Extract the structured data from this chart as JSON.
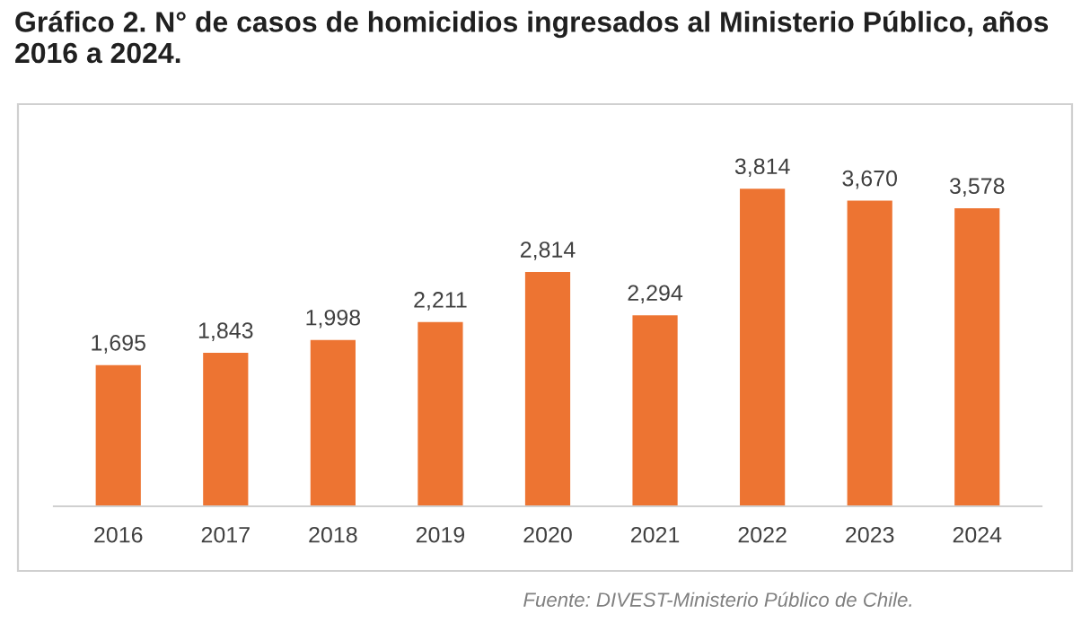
{
  "chart_data": {
    "type": "bar",
    "title": "Gráfico 2. N° de casos de homicidios ingresados al Ministerio Público, años 2016 a 2024.",
    "categories": [
      "2016",
      "2017",
      "2018",
      "2019",
      "2020",
      "2021",
      "2022",
      "2023",
      "2024"
    ],
    "values": [
      1695,
      1843,
      1998,
      2211,
      2814,
      2294,
      3814,
      3670,
      3578
    ],
    "value_labels": [
      "1,695",
      "1,843",
      "1,998",
      "2,211",
      "2,814",
      "2,294",
      "3,814",
      "3,670",
      "3,578"
    ],
    "color": "#ed7432",
    "grid": false,
    "legend": false,
    "annotations": [
      "Fuente: DIVEST-Ministerio Público de Chile."
    ]
  }
}
